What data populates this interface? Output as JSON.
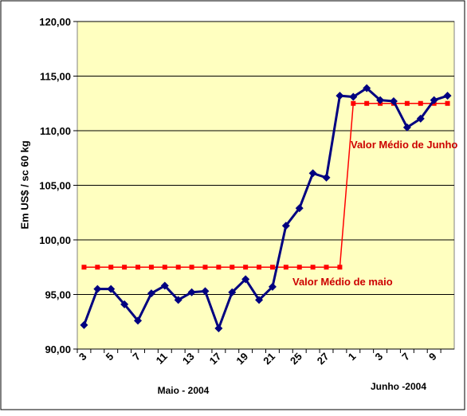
{
  "chart_data": {
    "type": "line",
    "y_label": "Em US$ / sc 60 kg",
    "x_group_labels": [
      "Maio - 2004",
      "Junho -2004"
    ],
    "annotations": [
      "Valor Médio de Junho",
      "Valor Médio de maio"
    ],
    "categories": [
      "3",
      null,
      "5",
      null,
      "7",
      null,
      "11",
      null,
      "13",
      null,
      "17",
      null,
      "19",
      null,
      "21",
      null,
      "25",
      null,
      "27",
      null,
      "1",
      null,
      "3",
      null,
      "7",
      null,
      "9",
      null
    ],
    "series": [
      {
        "color": "#000080",
        "marker": "diamond",
        "values": [
          92.2,
          95.5,
          95.5,
          94.1,
          92.6,
          95.1,
          95.8,
          94.5,
          95.2,
          95.3,
          91.9,
          95.2,
          96.4,
          94.5,
          95.7,
          101.3,
          102.9,
          106.1,
          105.7,
          113.2,
          113.1,
          113.9,
          112.8,
          112.7,
          110.3,
          111.1,
          112.8,
          113.2
        ]
      },
      {
        "color": "#ff0000",
        "marker": "square",
        "values": [
          97.5,
          97.5,
          97.5,
          97.5,
          97.5,
          97.5,
          97.5,
          97.5,
          97.5,
          97.5,
          97.5,
          97.5,
          97.5,
          97.5,
          97.5,
          97.5,
          97.5,
          97.5,
          97.5,
          97.5,
          112.5,
          112.5,
          112.5,
          112.5,
          112.5,
          112.5,
          112.5,
          112.5
        ]
      }
    ],
    "ylim": [
      90,
      120
    ],
    "yticks": [
      {
        "value": 90,
        "label": "90,00"
      },
      {
        "value": 95,
        "label": "95,00"
      },
      {
        "value": 100,
        "label": "100,00"
      },
      {
        "value": 105,
        "label": "105,00"
      },
      {
        "value": 110,
        "label": "110,00"
      },
      {
        "value": 115,
        "label": "115,00"
      },
      {
        "value": 120,
        "label": "120,00"
      }
    ],
    "grid": true
  }
}
